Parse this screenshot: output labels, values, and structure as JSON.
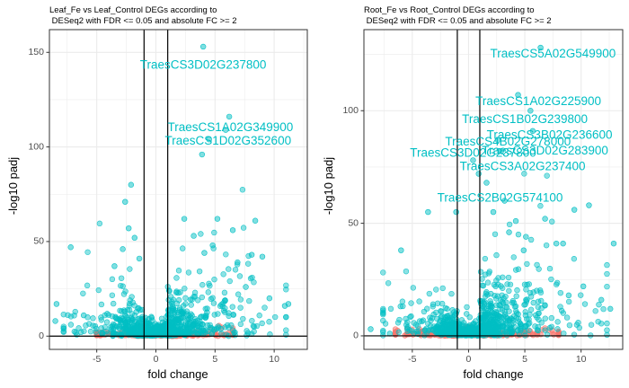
{
  "palette": {
    "significant": "#00bfc4",
    "not_significant": "#f8766d",
    "threshold_line": "#000000",
    "grid": "#ebebeb",
    "panel_border": "#333333"
  },
  "chart_data": [
    {
      "type": "scatter",
      "title_lines": [
        "Leaf_Fe vs Leaf_Control DEGs according to",
        " DESeq2 with FDR <= 0.05 and absolute FC >= 2"
      ],
      "xlabel": "fold change",
      "ylabel": "-log10 padj",
      "xlim": [
        -9,
        12.8
      ],
      "ylim": [
        -7,
        162
      ],
      "xticks": [
        -5,
        0,
        5,
        10
      ],
      "yticks": [
        0,
        50,
        100,
        150
      ],
      "vlines": [
        -1,
        1
      ],
      "hline": 0,
      "grid": true,
      "legend": "none",
      "seed": 11,
      "labels": [
        {
          "text": "TraesCS3D02G237800",
          "x": 4.0,
          "y": 143
        },
        {
          "text": "TraesCS1A02G349900",
          "x": 6.3,
          "y": 110
        },
        {
          "text": "TraesCS1D02G352600",
          "x": 6.1,
          "y": 103
        }
      ],
      "points": [
        {
          "x": 4.0,
          "y": 153
        },
        {
          "x": 6.2,
          "y": 116
        },
        {
          "x": 5.9,
          "y": 109
        },
        {
          "x": 4.5,
          "y": 104
        },
        {
          "x": 3.9,
          "y": 96
        },
        {
          "x": -2.1,
          "y": 80
        },
        {
          "x": -2.6,
          "y": 71
        },
        {
          "x": 5.2,
          "y": 62
        },
        {
          "x": 8.4,
          "y": 61
        },
        {
          "x": -7.2,
          "y": 47
        },
        {
          "x": -2.3,
          "y": 57
        },
        {
          "x": 6.5,
          "y": 56
        },
        {
          "x": 2.4,
          "y": 62
        },
        {
          "x": -2.8,
          "y": 46
        },
        {
          "x": 8.1,
          "y": 43
        },
        {
          "x": 4.8,
          "y": 48
        },
        {
          "x": 3.2,
          "y": 53
        },
        {
          "x": -1.8,
          "y": 52
        },
        {
          "x": -3.5,
          "y": 37
        },
        {
          "x": 6.9,
          "y": 39
        },
        {
          "x": 9.0,
          "y": 42
        },
        {
          "x": 4.1,
          "y": 44
        },
        {
          "x": -1.4,
          "y": 41
        },
        {
          "x": 10.9,
          "y": 16
        },
        {
          "x": 11.2,
          "y": 17
        },
        {
          "x": -8.4,
          "y": 17
        },
        {
          "x": -8.5,
          "y": 8
        },
        {
          "x": -6.1,
          "y": 11
        },
        {
          "x": 9.6,
          "y": 20
        },
        {
          "x": 7.6,
          "y": 26
        }
      ],
      "clusters": [
        {
          "side": -1,
          "n": 240,
          "fc_min": 1,
          "fc_max": 7.8,
          "fc_scale": 1.9,
          "y_scale": 5.5,
          "y_cap": 34
        },
        {
          "side": 1,
          "n": 340,
          "fc_min": 1,
          "fc_max": 11.0,
          "fc_scale": 2.4,
          "y_scale": 6.5,
          "y_cap": 40
        },
        {
          "side": 0,
          "n": 330,
          "fc_max": 1.15,
          "y_scale": 2.2,
          "y_cap": 22
        },
        {
          "side": -1,
          "n": 90,
          "fc_min": 1,
          "fc_max": 5.0,
          "fc_scale": 2.0,
          "y_scale": 0.6,
          "y_cap": 3,
          "ns": true
        },
        {
          "side": 1,
          "n": 110,
          "fc_min": 1,
          "fc_max": 6.5,
          "fc_scale": 2.3,
          "y_scale": 0.6,
          "y_cap": 3,
          "ns": true
        }
      ]
    },
    {
      "type": "scatter",
      "title_lines": [
        "Root_Fe vs Root_Control DEGs according to",
        " DESeq2 with FDR <= 0.05 and absolute FC >= 2"
      ],
      "xlabel": "fold change",
      "ylabel": "-log10 padj",
      "xlim": [
        -9.3,
        13.7
      ],
      "ylim": [
        -6,
        136
      ],
      "xticks": [
        -5,
        0,
        5,
        10
      ],
      "yticks": [
        0,
        50,
        100
      ],
      "vlines": [
        -1,
        1
      ],
      "hline": 0,
      "grid": true,
      "legend": "none",
      "seed": 29,
      "labels": [
        {
          "text": "TraesCS5A02G549900",
          "x": 7.5,
          "y": 125
        },
        {
          "text": "TraesCS1A02G225900",
          "x": 6.2,
          "y": 104
        },
        {
          "text": "TraesCS1B02G239800",
          "x": 5.0,
          "y": 96
        },
        {
          "text": "TraesCS3B02G236600",
          "x": 7.2,
          "y": 89
        },
        {
          "text": "TraesCS4B02G278000",
          "x": 3.5,
          "y": 86
        },
        {
          "text": "TraesCS3D02G237800",
          "x": 0.4,
          "y": 81
        },
        {
          "text": "TraesCS3D02G283900",
          "x": 6.8,
          "y": 82
        },
        {
          "text": "TraesCS3A02G237400",
          "x": 4.8,
          "y": 75
        },
        {
          "text": "TraesCS2B02G574100",
          "x": 2.8,
          "y": 61
        }
      ],
      "points": [
        {
          "x": 6.4,
          "y": 128
        },
        {
          "x": 4.4,
          "y": 107
        },
        {
          "x": 5.5,
          "y": 100
        },
        {
          "x": 5.7,
          "y": 91
        },
        {
          "x": 2.6,
          "y": 87
        },
        {
          "x": 2.9,
          "y": 82
        },
        {
          "x": 0.4,
          "y": 78
        },
        {
          "x": 0.9,
          "y": 72
        },
        {
          "x": -1.1,
          "y": 55
        },
        {
          "x": -3.6,
          "y": 55
        },
        {
          "x": 1.6,
          "y": 68
        },
        {
          "x": 9.4,
          "y": 56
        },
        {
          "x": 10.7,
          "y": 58
        },
        {
          "x": 3.2,
          "y": 60
        },
        {
          "x": 4.2,
          "y": 51
        },
        {
          "x": 6.8,
          "y": 52
        },
        {
          "x": 7.8,
          "y": 41
        },
        {
          "x": 8.4,
          "y": 41
        },
        {
          "x": 12.9,
          "y": 41
        },
        {
          "x": -6.0,
          "y": 38
        },
        {
          "x": 3.6,
          "y": 46
        },
        {
          "x": 5.1,
          "y": 44
        },
        {
          "x": 11.8,
          "y": 16
        },
        {
          "x": 12.6,
          "y": 12
        },
        {
          "x": -8.7,
          "y": 3
        },
        {
          "x": -7.0,
          "y": 1
        },
        {
          "x": 10.2,
          "y": 22
        },
        {
          "x": 8.9,
          "y": 18
        },
        {
          "x": 2.2,
          "y": 55
        },
        {
          "x": 4.9,
          "y": 38
        }
      ],
      "clusters": [
        {
          "side": -1,
          "n": 230,
          "fc_min": 1,
          "fc_max": 7.6,
          "fc_scale": 1.9,
          "y_scale": 4.0,
          "y_cap": 26
        },
        {
          "side": 1,
          "n": 380,
          "fc_min": 1,
          "fc_max": 12.3,
          "fc_scale": 2.6,
          "y_scale": 7.5,
          "y_cap": 42
        },
        {
          "side": 0,
          "n": 230,
          "fc_max": 1.15,
          "y_scale": 1.5,
          "y_cap": 12
        },
        {
          "side": -1,
          "n": 90,
          "fc_min": 1,
          "fc_max": 6.5,
          "fc_scale": 2.3,
          "y_scale": 0.5,
          "y_cap": 2.5,
          "ns": true
        },
        {
          "side": 1,
          "n": 110,
          "fc_min": 1,
          "fc_max": 8.0,
          "fc_scale": 2.6,
          "y_scale": 0.5,
          "y_cap": 2.5,
          "ns": true
        }
      ]
    }
  ]
}
